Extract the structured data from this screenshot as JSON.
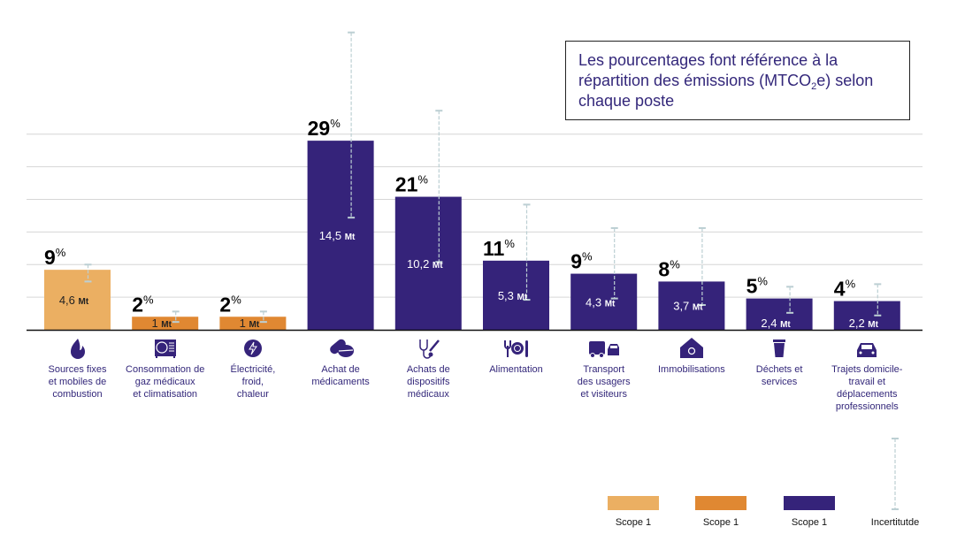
{
  "note": {
    "line1": "Les pourcentages font référence à la",
    "line2_pre": "répartition des émissions (MTCO",
    "line2_sub": "2",
    "line2_post": "e) selon",
    "line3": "chaque poste"
  },
  "colors": {
    "scope_light": "#ebaf62",
    "scope_orange": "#e08832",
    "scope_purple": "#35237a",
    "uncertainty": "#bccfd3",
    "grid": "#d6d6d6",
    "label_text": "#33277a"
  },
  "chart_data": {
    "type": "bar",
    "title": "",
    "xlabel": "",
    "ylabel": "",
    "unit": "Mt",
    "ylim": [
      0,
      15
    ],
    "grid": true,
    "gridline_step": 2.5,
    "categories": [
      "Sources fixes et mobiles de combustion",
      "Consommation de gaz médicaux et climatisation",
      "Électricité, froid, chaleur",
      "Achat de médicaments",
      "Achats de dispositifs médicaux",
      "Alimentation",
      "Transport des usagers et visiteurs",
      "Immobilisations",
      "Déchets et services",
      "Trajets domicile-travail et déplacements professionnels"
    ],
    "bars": [
      {
        "label_lines": [
          "Sources fixes",
          "et mobiles de",
          "combustion"
        ],
        "value": 4.6,
        "value_label": "4,6",
        "percent": "9",
        "scope": "light",
        "icon": "flame-icon",
        "uncertainty": [
          3.7,
          5.0
        ]
      },
      {
        "label_lines": [
          "Consommation de",
          "gaz médicaux",
          "et climatisation"
        ],
        "value": 1,
        "value_label": "1",
        "percent": "2",
        "scope": "orange",
        "icon": "air-conditioner-icon",
        "uncertainty": [
          0.6,
          1.4
        ]
      },
      {
        "label_lines": [
          "Électricité,",
          "froid,",
          "chaleur"
        ],
        "value": 1,
        "value_label": "1",
        "percent": "2",
        "scope": "orange",
        "icon": "lightning-icon",
        "uncertainty": [
          0.6,
          1.4
        ]
      },
      {
        "label_lines": [
          "Achat de",
          "médicaments"
        ],
        "value": 14.5,
        "value_label": "14,5",
        "percent": "29",
        "scope": "purple",
        "icon": "pills-icon",
        "uncertainty": [
          8.6,
          22.8
        ]
      },
      {
        "label_lines": [
          "Achats de",
          "dispositifs",
          "médicaux"
        ],
        "value": 10.2,
        "value_label": "10,2",
        "percent": "21",
        "scope": "purple",
        "icon": "stethoscope-syringe-icon",
        "uncertainty": [
          5.2,
          16.8
        ]
      },
      {
        "label_lines": [
          "Alimentation"
        ],
        "value": 5.3,
        "value_label": "5,3",
        "percent": "11",
        "scope": "purple",
        "icon": "cutlery-plate-icon",
        "uncertainty": [
          2.3,
          9.6
        ]
      },
      {
        "label_lines": [
          "Transport",
          "des usagers",
          "et visiteurs"
        ],
        "value": 4.3,
        "value_label": "4,3",
        "percent": "9",
        "scope": "purple",
        "icon": "ambulance-car-icon",
        "uncertainty": [
          2.4,
          7.8
        ]
      },
      {
        "label_lines": [
          "Immobilisations"
        ],
        "value": 3.7,
        "value_label": "3,7",
        "percent": "8",
        "scope": "purple",
        "icon": "house-icon",
        "uncertainty": [
          1.9,
          7.8
        ]
      },
      {
        "label_lines": [
          "Déchets et",
          "services"
        ],
        "value": 2.4,
        "value_label": "2,4",
        "percent": "5",
        "scope": "purple",
        "icon": "trash-icon",
        "uncertainty": [
          1.3,
          3.3
        ]
      },
      {
        "label_lines": [
          "Trajets domicile-",
          "travail et déplacements",
          "professionnels"
        ],
        "value": 2.2,
        "value_label": "2,2",
        "percent": "4",
        "scope": "purple",
        "icon": "car-icon",
        "uncertainty": [
          1.1,
          3.5
        ]
      }
    ],
    "legend": {
      "placement": "bottom-right",
      "items": [
        {
          "label": "Scope 1",
          "scope": "light"
        },
        {
          "label": "Scope 1",
          "scope": "orange"
        },
        {
          "label": "Scope 1",
          "scope": "purple"
        },
        {
          "label": "Incertitutde",
          "scope": "uncertainty"
        }
      ]
    }
  }
}
